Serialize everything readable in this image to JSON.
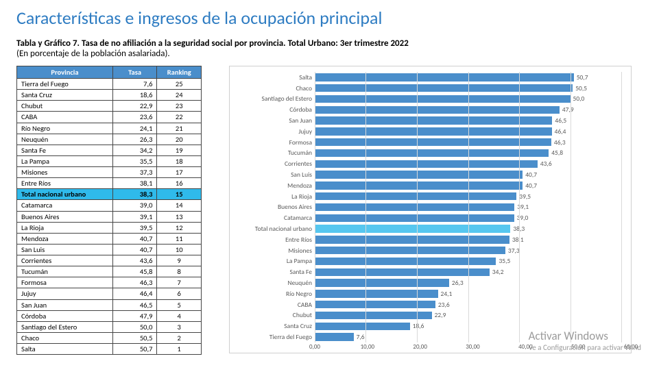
{
  "title": "Características e ingresos de la ocupación principal",
  "subtitle_bold": "Tabla y Gráfico 7. Tasa de no afiliación a la seguridad social por provincia. Total Urbano: 3er trimestre 2022",
  "subtitle_plain": "(En porcentaje de la población asalariada).",
  "table": {
    "columns": [
      "Provincia",
      "Tasa",
      "Ranking"
    ],
    "header_bg": "#4a8ecb",
    "header_fg": "#ffffff",
    "highlight_bg": "#2fbaeb",
    "rows": [
      {
        "p": "Tierra del Fuego",
        "t": "7,6",
        "r": "25"
      },
      {
        "p": "Santa Cruz",
        "t": "18,6",
        "r": "24"
      },
      {
        "p": "Chubut",
        "t": "22,9",
        "r": "23"
      },
      {
        "p": "CABA",
        "t": "23,6",
        "r": "22"
      },
      {
        "p": "Río Negro",
        "t": "24,1",
        "r": "21"
      },
      {
        "p": "Neuquén",
        "t": "26,3",
        "r": "20"
      },
      {
        "p": "Santa Fe",
        "t": "34,2",
        "r": "19"
      },
      {
        "p": "La Pampa",
        "t": "35,5",
        "r": "18"
      },
      {
        "p": "Misiones",
        "t": "37,3",
        "r": "17"
      },
      {
        "p": "Entre Ríos",
        "t": "38,1",
        "r": "16"
      },
      {
        "p": "Total nacional urbano",
        "t": "38,3",
        "r": "15",
        "hl": true
      },
      {
        "p": "Catamarca",
        "t": "39,0",
        "r": "14"
      },
      {
        "p": "Buenos Aires",
        "t": "39,1",
        "r": "13"
      },
      {
        "p": "La Rioja",
        "t": "39,5",
        "r": "12"
      },
      {
        "p": "Mendoza",
        "t": "40,7",
        "r": "11"
      },
      {
        "p": "San Luis",
        "t": "40,7",
        "r": "10"
      },
      {
        "p": "Corrientes",
        "t": "43,6",
        "r": "9"
      },
      {
        "p": "Tucumán",
        "t": "45,8",
        "r": "8"
      },
      {
        "p": "Formosa",
        "t": "46,3",
        "r": "7"
      },
      {
        "p": "Jujuy",
        "t": "46,4",
        "r": "6"
      },
      {
        "p": "San Juan",
        "t": "46,5",
        "r": "5"
      },
      {
        "p": "Córdoba",
        "t": "47,9",
        "r": "4"
      },
      {
        "p": "Santiago del Estero",
        "t": "50,0",
        "r": "3"
      },
      {
        "p": "Chaco",
        "t": "50,5",
        "r": "2"
      },
      {
        "p": "Salta",
        "t": "50,7",
        "r": "1"
      }
    ]
  },
  "chart": {
    "type": "bar-horizontal",
    "xlim": [
      0,
      60
    ],
    "xtick_step": 10,
    "xtick_labels": [
      "0,00",
      "10,00",
      "20,00",
      "30,00",
      "40,00",
      "50,00",
      "60,00"
    ],
    "grid_color": "#d9d9d9",
    "bar_color": "#4a8ecb",
    "highlight_bar_color": "#57c7ef",
    "label_color": "#595959",
    "label_fontsize": 9.5,
    "background_color": "#ffffff",
    "items": [
      {
        "label": "Salta",
        "value": 50.7,
        "text": "50,7"
      },
      {
        "label": "Chaco",
        "value": 50.5,
        "text": "50,5"
      },
      {
        "label": "Santiago del Estero",
        "value": 50.0,
        "text": "50,0"
      },
      {
        "label": "Córdoba",
        "value": 47.9,
        "text": "47,9"
      },
      {
        "label": "San Juan",
        "value": 46.5,
        "text": "46,5"
      },
      {
        "label": "Jujuy",
        "value": 46.4,
        "text": "46,4"
      },
      {
        "label": "Formosa",
        "value": 46.3,
        "text": "46,3"
      },
      {
        "label": "Tucumán",
        "value": 45.8,
        "text": "45,8"
      },
      {
        "label": "Corrientes",
        "value": 43.6,
        "text": "43,6"
      },
      {
        "label": "San Luis",
        "value": 40.7,
        "text": "40,7"
      },
      {
        "label": "Mendoza",
        "value": 40.7,
        "text": "40,7"
      },
      {
        "label": "La Rioja",
        "value": 39.5,
        "text": "39,5"
      },
      {
        "label": "Buenos Aires",
        "value": 39.1,
        "text": "39,1"
      },
      {
        "label": "Catamarca",
        "value": 39.0,
        "text": "39,0"
      },
      {
        "label": "Total nacional urbano",
        "value": 38.3,
        "text": "38,3",
        "hl": true
      },
      {
        "label": "Entre Ríos",
        "value": 38.1,
        "text": "38,1"
      },
      {
        "label": "Misiones",
        "value": 37.3,
        "text": "37,3"
      },
      {
        "label": "La Pampa",
        "value": 35.5,
        "text": "35,5"
      },
      {
        "label": "Santa Fe",
        "value": 34.2,
        "text": "34,2"
      },
      {
        "label": "Neuquén",
        "value": 26.3,
        "text": "26,3"
      },
      {
        "label": "Río Negro",
        "value": 24.1,
        "text": "24,1"
      },
      {
        "label": "CABA",
        "value": 23.6,
        "text": "23,6"
      },
      {
        "label": "Chubut",
        "value": 22.9,
        "text": "22,9"
      },
      {
        "label": "Santa Cruz",
        "value": 18.6,
        "text": "18,6"
      },
      {
        "label": "Tierra del Fuego",
        "value": 7.6,
        "text": "7,6"
      }
    ]
  },
  "watermark": {
    "title": "Activar Windows",
    "sub": "Ve a Configuración para activar Wind"
  }
}
